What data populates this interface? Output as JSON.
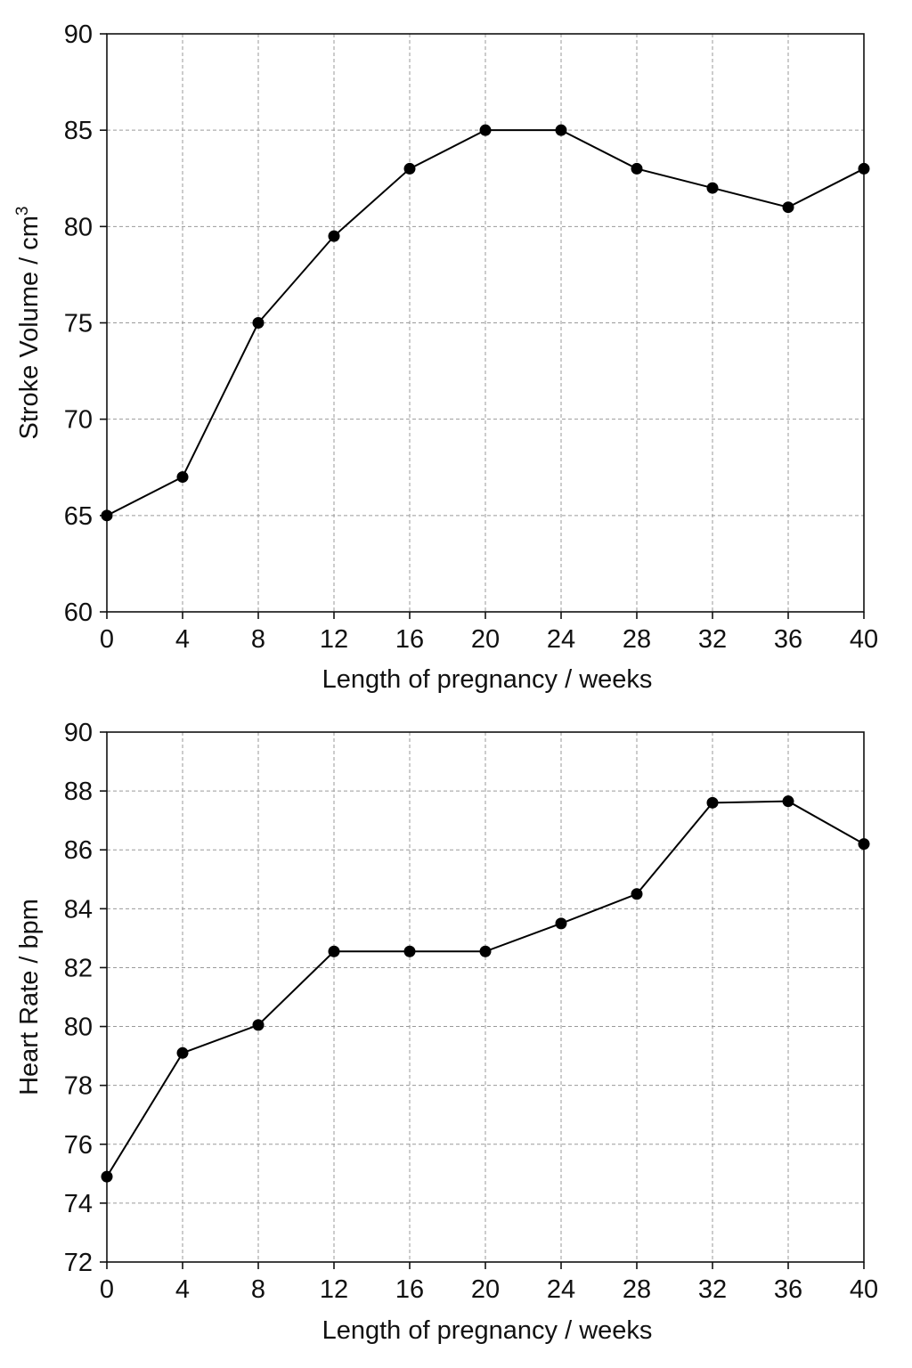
{
  "chart_data": [
    {
      "type": "line",
      "xlabel": "Length of pregnancy / weeks",
      "ylabel": "Stroke Volume / cm",
      "ylabel_sup": "3",
      "xlim": [
        0,
        40
      ],
      "ylim": [
        60,
        90
      ],
      "xticks": [
        0,
        4,
        8,
        12,
        16,
        20,
        24,
        28,
        32,
        36,
        40
      ],
      "yticks": [
        60,
        65,
        70,
        75,
        80,
        85,
        90
      ],
      "grid": true,
      "x": [
        0,
        4,
        8,
        12,
        16,
        20,
        24,
        28,
        32,
        36,
        40
      ],
      "series": [
        {
          "values": [
            65,
            67,
            75,
            79.5,
            83,
            85,
            85,
            83,
            82,
            81,
            83
          ]
        }
      ]
    },
    {
      "type": "line",
      "xlabel": "Length of pregnancy / weeks",
      "ylabel": "Heart Rate / bpm",
      "xlim": [
        0,
        40
      ],
      "ylim": [
        72,
        90
      ],
      "xticks": [
        0,
        4,
        8,
        12,
        16,
        20,
        24,
        28,
        32,
        36,
        40
      ],
      "yticks": [
        72,
        74,
        76,
        78,
        80,
        82,
        84,
        86,
        88,
        90
      ],
      "grid": true,
      "x": [
        0,
        4,
        8,
        12,
        16,
        20,
        24,
        28,
        32,
        36,
        40
      ],
      "series": [
        {
          "values": [
            74.9,
            79.1,
            80.05,
            82.55,
            82.55,
            82.55,
            83.5,
            84.5,
            87.6,
            87.65,
            86.2
          ]
        }
      ]
    }
  ]
}
